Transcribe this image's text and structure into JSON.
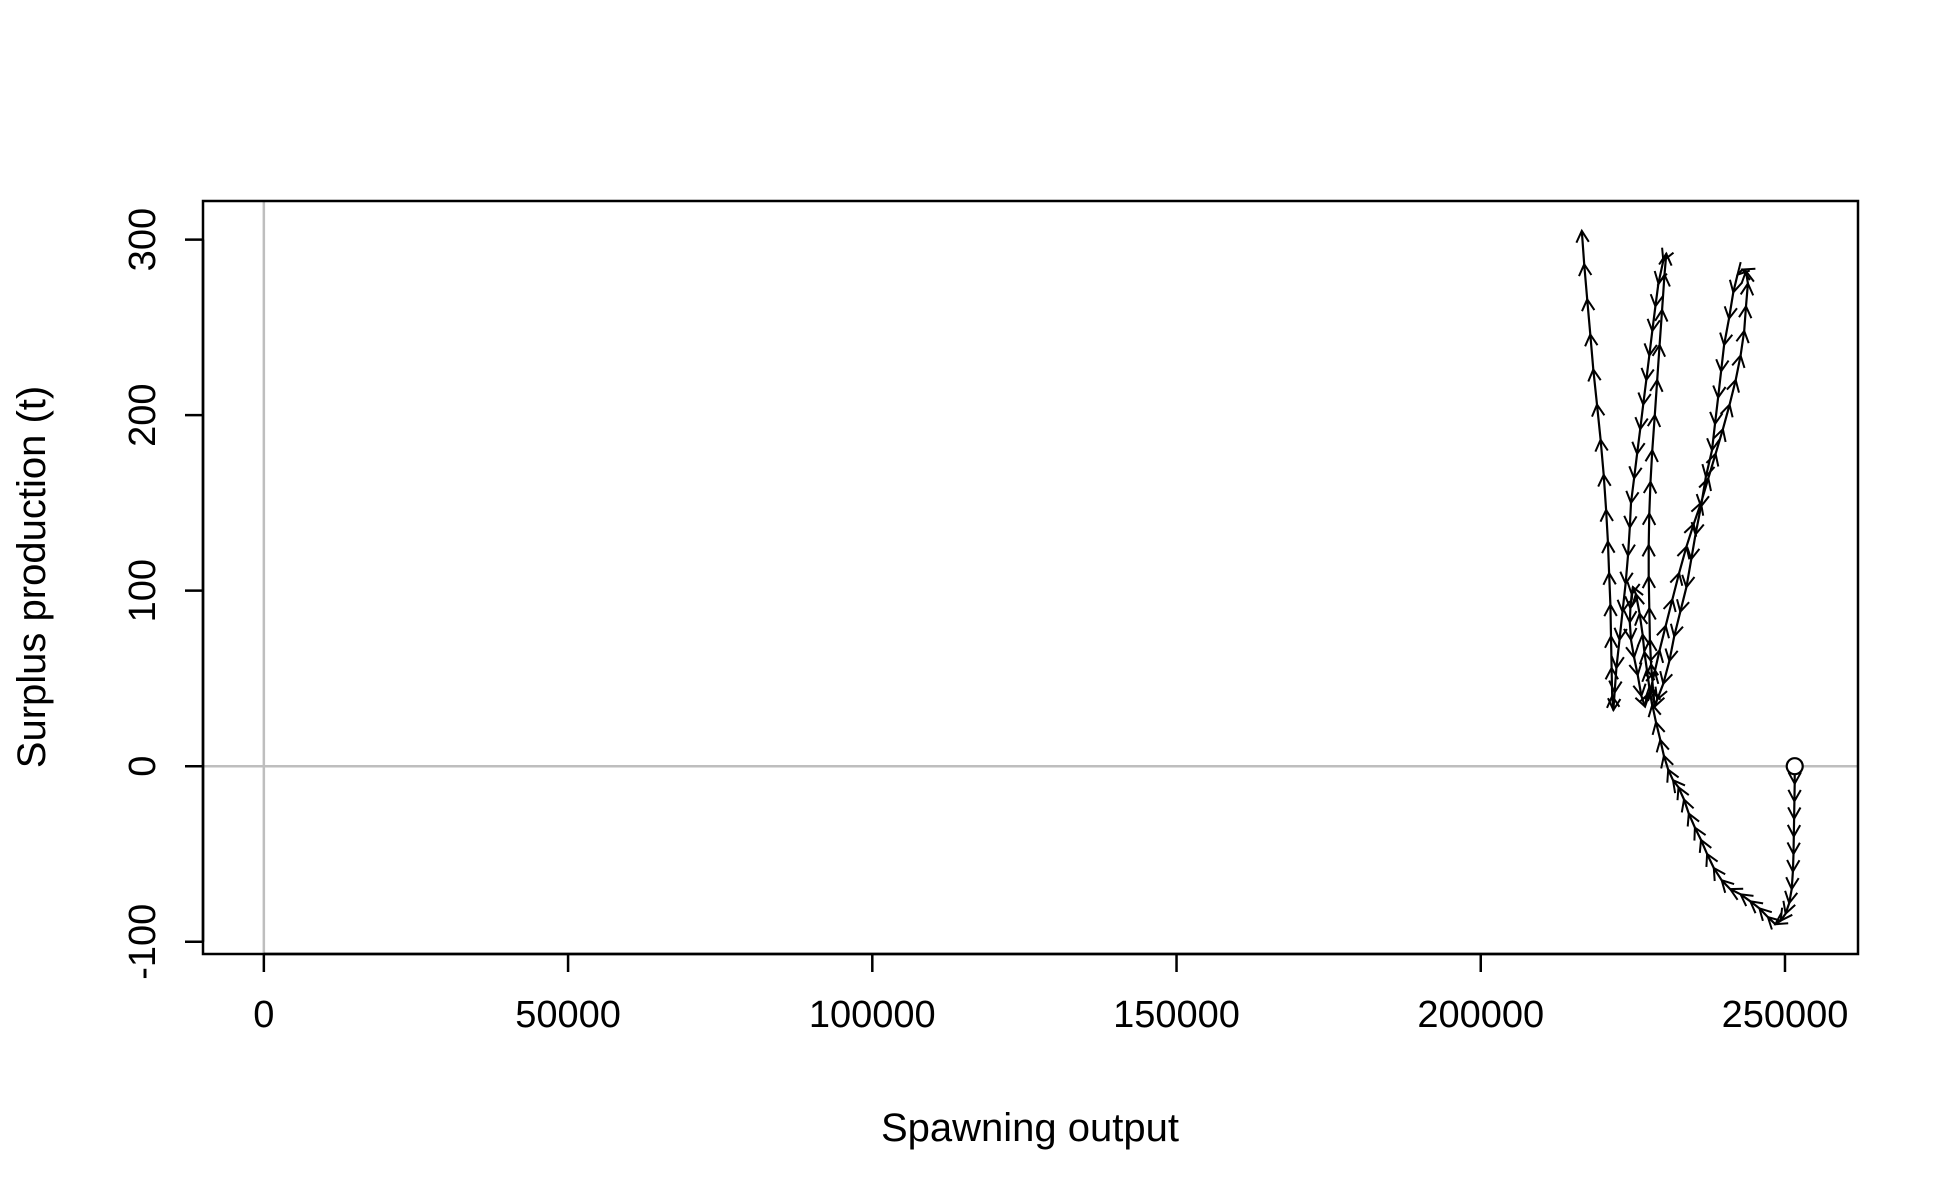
{
  "chart_data": {
    "type": "line",
    "title": "",
    "xlabel": "Spawning output",
    "ylabel": "Surplus production (t)",
    "xlim": [
      -10000,
      262000
    ],
    "ylim": [
      -107,
      322
    ],
    "xticks": [
      0,
      50000,
      100000,
      150000,
      200000,
      250000
    ],
    "xtick_labels": [
      "0",
      "50000",
      "100000",
      "150000",
      "200000",
      "250000"
    ],
    "yticks": [
      -100,
      0,
      100,
      200,
      300
    ],
    "ytick_labels": [
      "-100",
      "0",
      "100",
      "200",
      "300"
    ],
    "reference_lines": {
      "x": 0,
      "y": 0,
      "color": "#bebebe"
    },
    "grid": false,
    "line_color": "#000000",
    "arrows_along_path": true,
    "start_marker": "open-circle",
    "series": [
      {
        "x": [
          251600,
          251600,
          251550,
          251500,
          251450,
          251400,
          251300,
          251100,
          250700,
          250100,
          249300,
          248400,
          247200,
          245800,
          244300,
          242700,
          241000,
          239600,
          238300,
          237200,
          236200,
          235200,
          234200,
          233400,
          232500,
          231600,
          230800,
          230100,
          229500,
          228800,
          228200,
          227700,
          227300,
          226900,
          226600,
          226100,
          225500,
          225000,
          224800,
          224600,
          224500,
          224700,
          225200,
          225800,
          226400,
          227000,
          227800,
          228600,
          229400,
          230400,
          231500,
          232600,
          233800,
          235000,
          236200,
          237400,
          238600,
          239800,
          240900,
          241900,
          242700,
          243300,
          243600,
          243900,
          243600,
          243000,
          242200,
          241500,
          240800,
          240000,
          239500,
          239000,
          238500,
          238000,
          237000,
          236200,
          235300,
          234600,
          233800,
          232800,
          231800,
          231000,
          230000,
          229000,
          228600,
          228300,
          228000,
          227800,
          227700,
          227600,
          227600,
          227700,
          227900,
          228200,
          228600,
          229000,
          229400,
          229800,
          230200,
          230500,
          230000,
          229200,
          228700,
          228200,
          227700,
          227200,
          226700,
          226200,
          225700,
          225200,
          224700,
          224500,
          224200,
          223800,
          223300,
          222800,
          222300,
          222000,
          221800,
          221600,
          221500,
          221400,
          221300,
          221100,
          220900,
          220600,
          220200,
          219700,
          219100,
          218500,
          218000,
          217500,
          217000,
          216600
        ],
        "y": [
          0,
          -10,
          -20,
          -30,
          -40,
          -50,
          -60,
          -70,
          -78,
          -84,
          -88,
          -90,
          -86,
          -81,
          -77,
          -73,
          -70,
          -65,
          -58,
          -50,
          -42,
          -35,
          -27,
          -19,
          -12,
          -8,
          -2,
          6,
          15,
          25,
          35,
          45,
          55,
          65,
          75,
          87,
          98,
          102,
          98,
          90,
          82,
          72,
          62,
          52,
          40,
          34,
          42,
          54,
          66,
          80,
          95,
          110,
          125,
          138,
          150,
          164,
          178,
          192,
          206,
          220,
          234,
          248,
          262,
          275,
          282,
          283,
          280,
          270,
          255,
          240,
          225,
          210,
          195,
          180,
          165,
          148,
          132,
          118,
          102,
          88,
          74,
          60,
          47,
          38,
          34,
          44,
          58,
          72,
          90,
          108,
          126,
          144,
          162,
          180,
          200,
          220,
          240,
          260,
          280,
          292,
          288,
          275,
          262,
          248,
          234,
          220,
          206,
          192,
          178,
          164,
          150,
          136,
          120,
          104,
          88,
          72,
          56,
          42,
          32,
          40,
          56,
          74,
          92,
          110,
          128,
          146,
          166,
          186,
          206,
          226,
          246,
          266,
          286,
          305
        ]
      }
    ]
  }
}
